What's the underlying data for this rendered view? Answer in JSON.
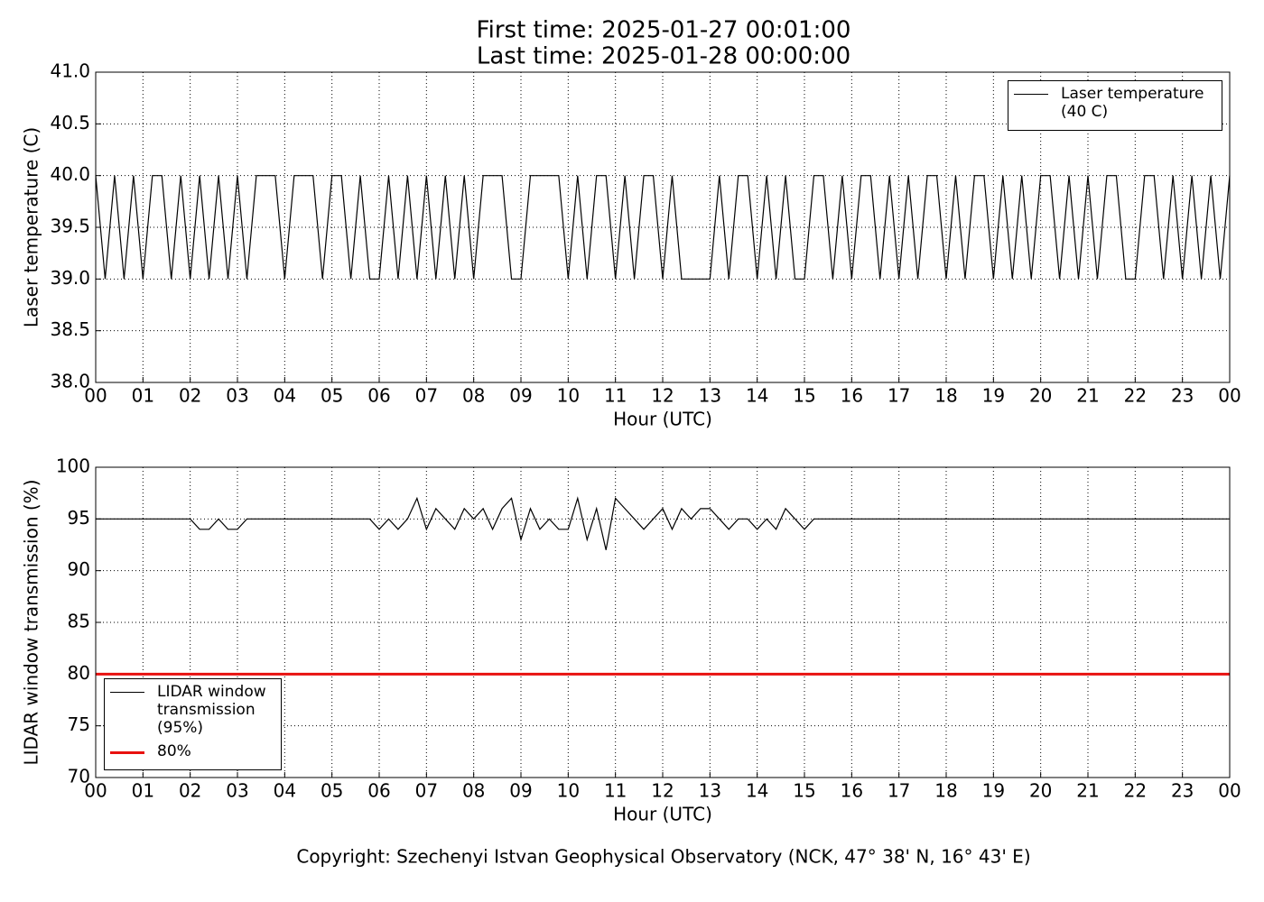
{
  "chart_data": [
    {
      "type": "line",
      "title": "First time: 2025-01-27 00:01:00",
      "subtitle": "Last time: 2025-01-28 00:00:00",
      "xlabel": "Hour (UTC)",
      "ylabel": "Laser temperature (C)",
      "x": [
        0,
        0.2,
        0.4,
        0.6,
        0.8,
        1,
        1.2,
        1.4,
        1.6,
        1.8,
        2,
        2.2,
        2.4,
        2.6,
        2.8,
        3,
        3.2,
        3.4,
        3.6,
        3.8,
        4,
        4.2,
        4.4,
        4.6,
        4.8,
        5,
        5.2,
        5.4,
        5.6,
        5.8,
        6,
        6.2,
        6.4,
        6.6,
        6.8,
        7,
        7.2,
        7.4,
        7.6,
        7.8,
        8,
        8.2,
        8.4,
        8.6,
        8.8,
        9,
        9.2,
        9.4,
        9.6,
        9.8,
        10,
        10.2,
        10.4,
        10.6,
        10.8,
        11,
        11.2,
        11.4,
        11.6,
        11.8,
        12,
        12.2,
        12.4,
        12.6,
        12.8,
        13,
        13.2,
        13.4,
        13.6,
        13.8,
        14,
        14.2,
        14.4,
        14.6,
        14.8,
        15,
        15.2,
        15.4,
        15.6,
        15.8,
        16,
        16.2,
        16.4,
        16.6,
        16.8,
        17,
        17.2,
        17.4,
        17.6,
        17.8,
        18,
        18.2,
        18.4,
        18.6,
        18.8,
        19,
        19.2,
        19.4,
        19.6,
        19.8,
        20,
        20.2,
        20.4,
        20.6,
        20.8,
        21,
        21.2,
        21.4,
        21.6,
        21.8,
        22,
        22.2,
        22.4,
        22.6,
        22.8,
        23,
        23.2,
        23.4,
        23.6,
        23.8,
        24
      ],
      "series": [
        {
          "name": "Laser temperature (40 C)",
          "color": "#000000",
          "values": [
            40,
            39,
            40,
            39,
            40,
            39,
            40,
            40,
            39,
            40,
            39,
            40,
            39,
            40,
            39,
            40,
            39,
            40,
            40,
            40,
            39,
            40,
            40,
            40,
            39,
            40,
            40,
            39,
            40,
            39,
            39,
            40,
            39,
            40,
            39,
            40,
            39,
            40,
            39,
            40,
            39,
            40,
            40,
            40,
            39,
            39,
            40,
            40,
            40,
            40,
            39,
            40,
            39,
            40,
            40,
            39,
            40,
            39,
            40,
            40,
            39,
            40,
            39,
            39,
            39,
            39,
            40,
            39,
            40,
            40,
            39,
            40,
            39,
            40,
            39,
            39,
            40,
            40,
            39,
            40,
            39,
            40,
            40,
            39,
            40,
            39,
            40,
            39,
            40,
            40,
            39,
            40,
            39,
            40,
            40,
            39,
            40,
            39,
            40,
            39,
            40,
            40,
            39,
            40,
            39,
            40,
            39,
            40,
            40,
            39,
            39,
            40,
            40,
            39,
            40,
            39,
            40,
            39,
            40,
            39,
            40
          ]
        }
      ],
      "xlim": [
        0,
        24
      ],
      "ylim": [
        38,
        41
      ],
      "xticks": [
        {
          "value": 0,
          "label": "00"
        },
        {
          "value": 1,
          "label": "01"
        },
        {
          "value": 2,
          "label": "02"
        },
        {
          "value": 3,
          "label": "03"
        },
        {
          "value": 4,
          "label": "04"
        },
        {
          "value": 5,
          "label": "05"
        },
        {
          "value": 6,
          "label": "06"
        },
        {
          "value": 7,
          "label": "07"
        },
        {
          "value": 8,
          "label": "08"
        },
        {
          "value": 9,
          "label": "09"
        },
        {
          "value": 10,
          "label": "10"
        },
        {
          "value": 11,
          "label": "11"
        },
        {
          "value": 12,
          "label": "12"
        },
        {
          "value": 13,
          "label": "13"
        },
        {
          "value": 14,
          "label": "14"
        },
        {
          "value": 15,
          "label": "15"
        },
        {
          "value": 16,
          "label": "16"
        },
        {
          "value": 17,
          "label": "17"
        },
        {
          "value": 18,
          "label": "18"
        },
        {
          "value": 19,
          "label": "19"
        },
        {
          "value": 20,
          "label": "20"
        },
        {
          "value": 21,
          "label": "21"
        },
        {
          "value": 22,
          "label": "22"
        },
        {
          "value": 23,
          "label": "23"
        },
        {
          "value": 24,
          "label": "00"
        }
      ],
      "yticks": [
        {
          "value": 38,
          "label": "38.0"
        },
        38.5,
        {
          "value": 39,
          "label": "39.0"
        },
        39.5,
        {
          "value": 40,
          "label": "40.0"
        },
        40.5,
        {
          "value": 41,
          "label": "41.0"
        }
      ],
      "grid": true,
      "legend": "upper right"
    },
    {
      "type": "line",
      "xlabel": "Hour (UTC)",
      "ylabel": "LIDAR window transmission (%)",
      "x": [
        0,
        0.2,
        0.4,
        0.6,
        0.8,
        1,
        1.2,
        1.4,
        1.6,
        1.8,
        2,
        2.2,
        2.4,
        2.6,
        2.8,
        3,
        3.2,
        3.4,
        3.6,
        3.8,
        4,
        4.2,
        4.4,
        4.6,
        4.8,
        5,
        5.2,
        5.4,
        5.6,
        5.8,
        6,
        6.2,
        6.4,
        6.6,
        6.8,
        7,
        7.2,
        7.4,
        7.6,
        7.8,
        8,
        8.2,
        8.4,
        8.6,
        8.8,
        9,
        9.2,
        9.4,
        9.6,
        9.8,
        10,
        10.2,
        10.4,
        10.6,
        10.8,
        11,
        11.2,
        11.4,
        11.6,
        11.8,
        12,
        12.2,
        12.4,
        12.6,
        12.8,
        13,
        13.2,
        13.4,
        13.6,
        13.8,
        14,
        14.2,
        14.4,
        14.6,
        14.8,
        15,
        15.2,
        15.4,
        15.6,
        15.8,
        16,
        16.2,
        16.4,
        16.6,
        16.8,
        17,
        17.2,
        17.4,
        17.6,
        17.8,
        18,
        18.2,
        18.4,
        18.6,
        18.8,
        19,
        19.2,
        19.4,
        19.6,
        19.8,
        20,
        20.2,
        20.4,
        20.6,
        20.8,
        21,
        21.2,
        21.4,
        21.6,
        21.8,
        22,
        22.2,
        22.4,
        22.6,
        22.8,
        23,
        23.2,
        23.4,
        23.6,
        23.8,
        24
      ],
      "series": [
        {
          "name": "LIDAR window transmission (95%)",
          "color": "#000000",
          "values": [
            95,
            95,
            95,
            95,
            95,
            95,
            95,
            95,
            95,
            95,
            95,
            94,
            94,
            95,
            94,
            94,
            95,
            95,
            95,
            95,
            95,
            95,
            95,
            95,
            95,
            95,
            95,
            95,
            95,
            95,
            94,
            95,
            94,
            95,
            97,
            94,
            96,
            95,
            94,
            96,
            95,
            96,
            94,
            96,
            97,
            93,
            96,
            94,
            95,
            94,
            94,
            97,
            93,
            96,
            92,
            97,
            96,
            95,
            94,
            95,
            96,
            94,
            96,
            95,
            96,
            96,
            95,
            94,
            95,
            95,
            94,
            95,
            94,
            96,
            95,
            94,
            95,
            95,
            95,
            95,
            95,
            95,
            95,
            95,
            95,
            95,
            95,
            95,
            95,
            95,
            95,
            95,
            95,
            95,
            95,
            95,
            95,
            95,
            95,
            95,
            95,
            95,
            95,
            95,
            95,
            95,
            95,
            95,
            95,
            95,
            95,
            95,
            95,
            95,
            95,
            95,
            95,
            95,
            95,
            95,
            95
          ]
        }
      ],
      "threshold": {
        "name": "80%",
        "value": 80,
        "color": "#e8110f"
      },
      "xlim": [
        0,
        24
      ],
      "ylim": [
        70,
        100
      ],
      "xticks": [
        {
          "value": 0,
          "label": "00"
        },
        {
          "value": 1,
          "label": "01"
        },
        {
          "value": 2,
          "label": "02"
        },
        {
          "value": 3,
          "label": "03"
        },
        {
          "value": 4,
          "label": "04"
        },
        {
          "value": 5,
          "label": "05"
        },
        {
          "value": 6,
          "label": "06"
        },
        {
          "value": 7,
          "label": "07"
        },
        {
          "value": 8,
          "label": "08"
        },
        {
          "value": 9,
          "label": "09"
        },
        {
          "value": 10,
          "label": "10"
        },
        {
          "value": 11,
          "label": "11"
        },
        {
          "value": 12,
          "label": "12"
        },
        {
          "value": 13,
          "label": "13"
        },
        {
          "value": 14,
          "label": "14"
        },
        {
          "value": 15,
          "label": "15"
        },
        {
          "value": 16,
          "label": "16"
        },
        {
          "value": 17,
          "label": "17"
        },
        {
          "value": 18,
          "label": "18"
        },
        {
          "value": 19,
          "label": "19"
        },
        {
          "value": 20,
          "label": "20"
        },
        {
          "value": 21,
          "label": "21"
        },
        {
          "value": 22,
          "label": "22"
        },
        {
          "value": 23,
          "label": "23"
        },
        {
          "value": 24,
          "label": "00"
        }
      ],
      "yticks": [
        70,
        75,
        80,
        85,
        90,
        95,
        100
      ],
      "grid": true,
      "legend": "lower left"
    }
  ],
  "footer": "Copyright: Szechenyi Istvan Geophysical Observatory (NCK, 47° 38' N, 16° 43' E)"
}
